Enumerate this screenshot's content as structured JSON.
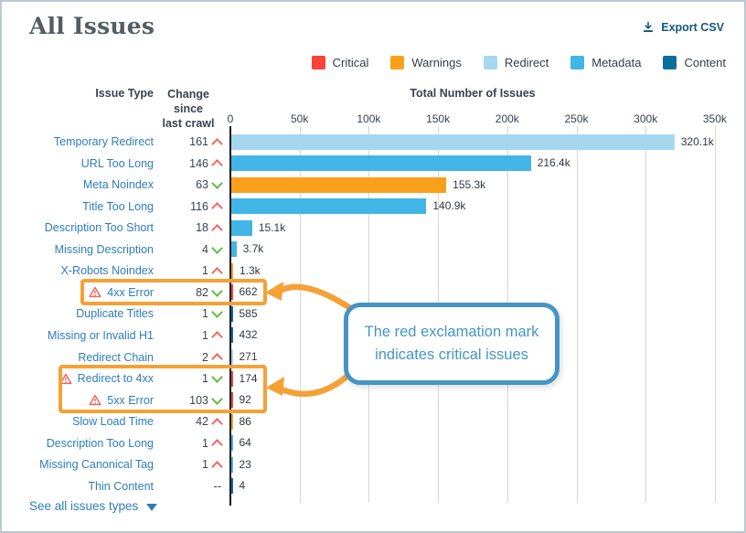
{
  "header": {
    "title": "All Issues",
    "export_label": "Export CSV"
  },
  "legend": [
    {
      "label": "Critical",
      "color": "#f9423a"
    },
    {
      "label": "Warnings",
      "color": "#f9a01b"
    },
    {
      "label": "Redirect",
      "color": "#a5d8ef"
    },
    {
      "label": "Metadata",
      "color": "#41b6e6"
    },
    {
      "label": "Content",
      "color": "#0b6e9e"
    }
  ],
  "columns": {
    "issue_type": "Issue Type",
    "change_line1": "Change since",
    "change_line2": "last crawl",
    "total_header": "Total Number of Issues"
  },
  "chart_data": {
    "type": "bar",
    "orientation": "horizontal",
    "title": "All Issues",
    "xlabel": "Total Number of Issues",
    "xlim": [
      0,
      350000
    ],
    "xtick_labels": [
      "0",
      "50k",
      "100k",
      "150k",
      "200k",
      "250k",
      "300k",
      "350k"
    ],
    "grid": true,
    "legend_position": "top-right",
    "rows": [
      {
        "label": "Temporary Redirect",
        "change": "161",
        "trend": "up",
        "value": 320100,
        "value_label": "320.1k",
        "category": "Redirect",
        "critical": false
      },
      {
        "label": "URL Too Long",
        "change": "146",
        "trend": "up",
        "value": 216400,
        "value_label": "216.4k",
        "category": "Metadata",
        "critical": false
      },
      {
        "label": "Meta Noindex",
        "change": "63",
        "trend": "down",
        "value": 155300,
        "value_label": "155.3k",
        "category": "Warnings",
        "critical": false
      },
      {
        "label": "Title Too Long",
        "change": "116",
        "trend": "up",
        "value": 140900,
        "value_label": "140.9k",
        "category": "Metadata",
        "critical": false
      },
      {
        "label": "Description Too Short",
        "change": "18",
        "trend": "up",
        "value": 15100,
        "value_label": "15.1k",
        "category": "Metadata",
        "critical": false
      },
      {
        "label": "Missing Description",
        "change": "4",
        "trend": "down",
        "value": 3700,
        "value_label": "3.7k",
        "category": "Metadata",
        "critical": false
      },
      {
        "label": "X-Robots Noindex",
        "change": "1",
        "trend": "up",
        "value": 1300,
        "value_label": "1.3k",
        "category": "Warnings",
        "critical": false
      },
      {
        "label": "4xx Error",
        "change": "82",
        "trend": "down",
        "value": 662,
        "value_label": "662",
        "category": "Critical",
        "critical": true
      },
      {
        "label": "Duplicate Titles",
        "change": "1",
        "trend": "down",
        "value": 585,
        "value_label": "585",
        "category": "Content",
        "critical": false
      },
      {
        "label": "Missing or Invalid H1",
        "change": "1",
        "trend": "up",
        "value": 432,
        "value_label": "432",
        "category": "Content",
        "critical": false
      },
      {
        "label": "Redirect Chain",
        "change": "2",
        "trend": "up",
        "value": 271,
        "value_label": "271",
        "category": "Redirect",
        "critical": false
      },
      {
        "label": "Redirect to 4xx",
        "change": "1",
        "trend": "down",
        "value": 174,
        "value_label": "174",
        "category": "Critical",
        "critical": true
      },
      {
        "label": "5xx Error",
        "change": "103",
        "trend": "down",
        "value": 92,
        "value_label": "92",
        "category": "Critical",
        "critical": true
      },
      {
        "label": "Slow Load Time",
        "change": "42",
        "trend": "up",
        "value": 86,
        "value_label": "86",
        "category": "Warnings",
        "critical": false
      },
      {
        "label": "Description Too Long",
        "change": "1",
        "trend": "up",
        "value": 64,
        "value_label": "64",
        "category": "Metadata",
        "critical": false
      },
      {
        "label": "Missing Canonical Tag",
        "change": "1",
        "trend": "up",
        "value": 23,
        "value_label": "23",
        "category": "Metadata",
        "critical": false
      },
      {
        "label": "Thin Content",
        "change": "--",
        "trend": "none",
        "value": 4,
        "value_label": "4",
        "category": "Content",
        "critical": false
      }
    ]
  },
  "annotation": {
    "line1": "The red exclamation mark",
    "line2": "indicates critical issues"
  },
  "footer": {
    "see_all": "See all issues types"
  },
  "colors": {
    "critical": "#f9423a",
    "warnings": "#f9a01b",
    "redirect": "#a5d8ef",
    "metadata": "#41b6e6",
    "content": "#0b6e9e",
    "annotation_orange": "#f5a135",
    "callout_blue": "#4495c5",
    "trend_up": "#f2695c",
    "trend_down": "#64bb47",
    "warning_icon": "#ee6159",
    "link_blue": "#2d7dbb",
    "export_blue": "#11587f",
    "axis_text": "#39424e"
  }
}
